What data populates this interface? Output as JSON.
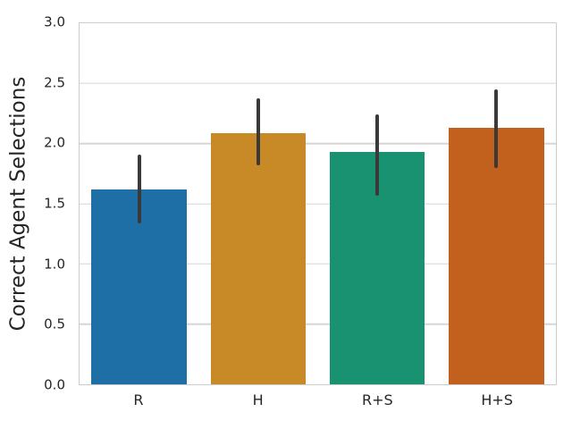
{
  "figure": {
    "background": "#ffffff",
    "spine_color": "#cccccc",
    "text_color": "#262626"
  },
  "chart_data": {
    "type": "bar",
    "title": "",
    "xlabel": "",
    "ylabel": "Correct Agent Selections",
    "categories": [
      "R",
      "H",
      "R+S",
      "H+S"
    ],
    "values": [
      1.62,
      2.09,
      1.93,
      2.13
    ],
    "error_bars": [
      {
        "low": 1.34,
        "high": 1.91
      },
      {
        "low": 1.82,
        "high": 2.38
      },
      {
        "low": 1.57,
        "high": 2.24
      },
      {
        "low": 1.8,
        "high": 2.45
      }
    ],
    "bar_colors": [
      "#1d6fa5",
      "#c88a26",
      "#189271",
      "#c2611e"
    ],
    "errorbar_color": "#3a3a3a",
    "ylim": [
      0.0,
      3.0
    ],
    "yticks": [
      0.0,
      0.5,
      1.0,
      1.5,
      2.0,
      2.5,
      3.0
    ],
    "ytick_labels": [
      "0.0",
      "0.5",
      "1.0",
      "1.5",
      "2.0",
      "2.5",
      "3.0"
    ],
    "grid": true,
    "grid_color": "#d6d6d6",
    "legend_position": "none",
    "bar_width_fraction": 0.8
  }
}
